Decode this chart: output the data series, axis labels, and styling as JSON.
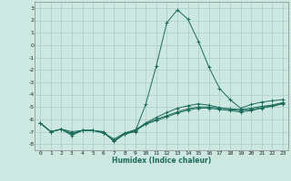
{
  "title": "",
  "xlabel": "Humidex (Indice chaleur)",
  "bg_color": "#cce8e0",
  "grid_color": "#aacccc",
  "line_color": "#1a6b5a",
  "x_values": [
    0,
    1,
    2,
    3,
    4,
    5,
    6,
    7,
    8,
    9,
    10,
    11,
    12,
    13,
    14,
    15,
    16,
    17,
    18,
    19,
    20,
    21,
    22,
    23
  ],
  "series": [
    [
      -6.3,
      -7.0,
      -6.8,
      -7.3,
      -6.9,
      -6.9,
      -7.0,
      -7.8,
      -7.2,
      -7.0,
      -4.8,
      -1.7,
      1.8,
      2.85,
      2.1,
      0.3,
      -1.8,
      -3.5,
      -4.4,
      -5.1,
      -4.8,
      -4.6,
      -4.5,
      -4.4
    ],
    [
      -6.3,
      -7.0,
      -6.8,
      -7.0,
      -6.9,
      -6.9,
      -7.1,
      -7.6,
      -7.1,
      -6.85,
      -6.35,
      -6.0,
      -5.7,
      -5.4,
      -5.15,
      -5.0,
      -5.0,
      -5.1,
      -5.15,
      -5.2,
      -5.1,
      -4.95,
      -4.85,
      -4.65
    ],
    [
      -6.3,
      -7.0,
      -6.8,
      -7.15,
      -6.9,
      -6.9,
      -7.1,
      -7.7,
      -7.2,
      -6.9,
      -6.3,
      -5.85,
      -5.45,
      -5.1,
      -4.9,
      -4.75,
      -4.85,
      -5.05,
      -5.2,
      -5.3,
      -5.2,
      -5.05,
      -4.9,
      -4.7
    ],
    [
      -6.3,
      -7.0,
      -6.8,
      -7.2,
      -6.9,
      -6.9,
      -7.05,
      -7.75,
      -7.15,
      -6.95,
      -6.4,
      -6.1,
      -5.8,
      -5.5,
      -5.25,
      -5.1,
      -5.1,
      -5.2,
      -5.3,
      -5.4,
      -5.3,
      -5.1,
      -4.95,
      -4.75
    ]
  ],
  "ylim": [
    -8.5,
    3.5
  ],
  "xlim": [
    -0.5,
    23.5
  ],
  "yticks": [
    3,
    2,
    1,
    0,
    -1,
    -2,
    -3,
    -4,
    -5,
    -6,
    -7,
    -8
  ],
  "xticks": [
    0,
    1,
    2,
    3,
    4,
    5,
    6,
    7,
    8,
    9,
    10,
    11,
    12,
    13,
    14,
    15,
    16,
    17,
    18,
    19,
    20,
    21,
    22,
    23
  ]
}
